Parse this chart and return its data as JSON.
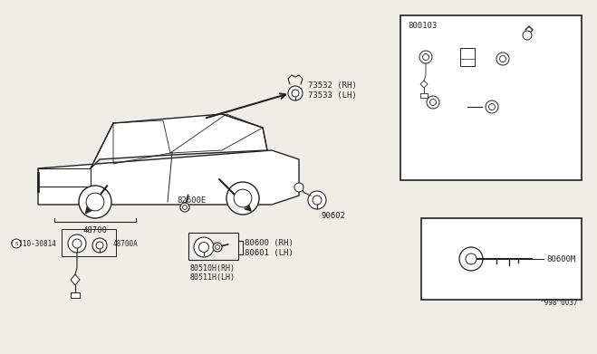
{
  "bg_color": "#f0ede8",
  "line_color": "#222222",
  "fig_width": 6.4,
  "fig_height": 3.72,
  "parts": {
    "top_label": "73532 (RH)\n73533 (LH)",
    "steering_label": "48700",
    "steering_sub": "08310-30814",
    "steering_sub2": "48700A",
    "door_label1": "82600E",
    "door_label2": "80510H(RH)\n80511H(LH)",
    "door_label3": "80600 (RH)\n80601 (LH)",
    "trunk_label": "90602",
    "set_box_label": "800103",
    "key_label": "80600M",
    "footnote": "^998^0037"
  }
}
